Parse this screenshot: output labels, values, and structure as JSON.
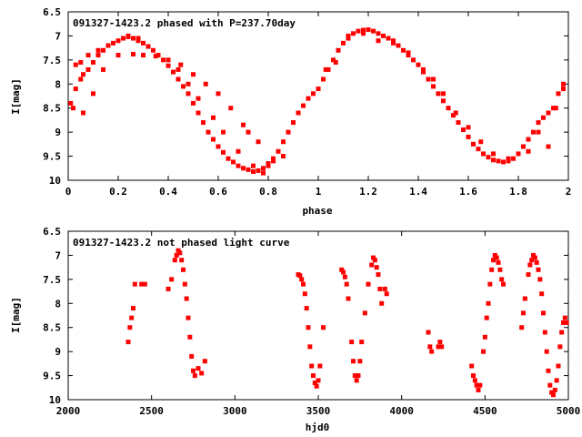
{
  "colors": {
    "series": "#ff0000",
    "axes": "#000000",
    "background": "#ffffff"
  },
  "chart_data": [
    {
      "type": "scatter",
      "title": "091327-1423.2 phased with P=237.70day",
      "xlabel": "phase",
      "ylabel": "I[mag]",
      "xlim": [
        0,
        2
      ],
      "ylim": [
        6.5,
        10
      ],
      "y_inverted": true,
      "grid": false,
      "xticks": [
        "0",
        "0.2",
        "0.4",
        "0.6",
        "0.8",
        "1",
        "1.2",
        "1.4",
        "1.6",
        "1.8",
        "2"
      ],
      "yticks": [
        "6.5",
        "7",
        "7.5",
        "8",
        "8.5",
        "9",
        "9.5",
        "10"
      ],
      "marker": "filled-square",
      "series": [
        {
          "name": "",
          "x": [
            0.01,
            0.02,
            0.03,
            0.05,
            0.06,
            0.08,
            0.1,
            0.12,
            0.14,
            0.16,
            0.18,
            0.2,
            0.22,
            0.24,
            0.26,
            0.28,
            0.3,
            0.32,
            0.34,
            0.36,
            0.38,
            0.4,
            0.42,
            0.44,
            0.46,
            0.48,
            0.5,
            0.52,
            0.54,
            0.56,
            0.58,
            0.6,
            0.62,
            0.64,
            0.66,
            0.68,
            0.7,
            0.72,
            0.74,
            0.76,
            0.78,
            0.8,
            0.82,
            0.84,
            0.86,
            0.88,
            0.9,
            0.92,
            0.94,
            0.96,
            0.98,
            1.0,
            1.02,
            1.04,
            1.06,
            1.08,
            1.1,
            1.12,
            1.14,
            1.16,
            1.18,
            1.2,
            1.22,
            1.24,
            1.26,
            1.28,
            1.3,
            1.32,
            1.34,
            1.36,
            1.38,
            1.4,
            1.42,
            1.44,
            1.46,
            1.48,
            1.5,
            1.52,
            1.54,
            1.56,
            1.58,
            1.6,
            1.62,
            1.64,
            1.66,
            1.68,
            1.7,
            1.72,
            1.74,
            1.76,
            1.78,
            1.8,
            1.82,
            1.84,
            1.86,
            1.88,
            1.9,
            1.92,
            1.94,
            1.96,
            1.98,
            0.06,
            0.1,
            0.14,
            0.2,
            0.26,
            0.3,
            0.35,
            0.4,
            0.45,
            0.5,
            0.55,
            0.6,
            0.65,
            0.7,
            0.72,
            0.76,
            0.8,
            0.03,
            0.05,
            0.08,
            0.12,
            0.16,
            0.24,
            0.28,
            0.44,
            0.48,
            0.52,
            0.58,
            0.62,
            0.68,
            0.74,
            0.78,
            0.82,
            0.86,
            1.03,
            1.07,
            1.12,
            1.18,
            1.24,
            1.3,
            1.36,
            1.42,
            1.46,
            1.5,
            1.55,
            1.6,
            1.65,
            1.7,
            1.76,
            1.84,
            1.88,
            1.92,
            1.95,
            1.98
          ],
          "y": [
            8.4,
            8.5,
            8.1,
            7.9,
            7.8,
            7.7,
            7.55,
            7.4,
            7.3,
            7.2,
            7.15,
            7.1,
            7.05,
            7.02,
            7.05,
            7.1,
            7.15,
            7.22,
            7.3,
            7.4,
            7.5,
            7.62,
            7.75,
            7.9,
            8.05,
            8.2,
            8.4,
            8.6,
            8.8,
            9.0,
            9.15,
            9.3,
            9.42,
            9.55,
            9.62,
            9.7,
            9.75,
            9.78,
            9.82,
            9.8,
            9.75,
            9.65,
            9.55,
            9.4,
            9.2,
            9.0,
            8.8,
            8.6,
            8.45,
            8.3,
            8.2,
            8.1,
            7.9,
            7.7,
            7.5,
            7.3,
            7.15,
            7.0,
            6.95,
            6.9,
            6.88,
            6.87,
            6.9,
            6.95,
            7.0,
            7.05,
            7.1,
            7.2,
            7.3,
            7.4,
            7.5,
            7.6,
            7.75,
            7.9,
            8.05,
            8.2,
            8.35,
            8.5,
            8.65,
            8.8,
            8.95,
            9.1,
            9.25,
            9.35,
            9.45,
            9.52,
            9.58,
            9.6,
            9.62,
            9.6,
            9.55,
            9.45,
            9.3,
            9.15,
            9.0,
            8.8,
            8.7,
            8.6,
            8.5,
            8.2,
            8.1,
            8.6,
            8.2,
            7.7,
            7.4,
            7.38,
            7.4,
            7.42,
            7.5,
            7.6,
            7.8,
            8.0,
            8.2,
            8.5,
            8.85,
            9.0,
            9.2,
            9.7,
            7.6,
            7.55,
            7.4,
            7.3,
            7.2,
            7.0,
            7.05,
            7.7,
            8.0,
            8.3,
            8.7,
            9.0,
            9.4,
            9.7,
            9.85,
            9.6,
            9.5,
            7.7,
            7.55,
            7.05,
            6.95,
            7.1,
            7.15,
            7.35,
            7.7,
            7.9,
            8.2,
            8.6,
            8.9,
            9.2,
            9.45,
            9.55,
            9.4,
            9.0,
            9.3,
            8.5,
            8.0
          ]
        }
      ]
    },
    {
      "type": "scatter",
      "title": "091327-1423.2 not phased light curve",
      "xlabel": "hjd0",
      "ylabel": "I[mag]",
      "xlim": [
        2000,
        5000
      ],
      "ylim": [
        6.5,
        10
      ],
      "y_inverted": true,
      "grid": false,
      "xticks": [
        "2000",
        "2500",
        "3000",
        "3500",
        "4000",
        "4500",
        "5000"
      ],
      "yticks": [
        "6.5",
        "7",
        "7.5",
        "8",
        "8.5",
        "9",
        "9.5",
        "10"
      ],
      "marker": "filled-square",
      "series": [
        {
          "name": "",
          "x": [
            2360,
            2370,
            2380,
            2390,
            2400,
            2440,
            2460,
            2600,
            2620,
            2640,
            2650,
            2660,
            2670,
            2680,
            2690,
            2700,
            2710,
            2720,
            2730,
            2740,
            2750,
            2760,
            2780,
            2800,
            2820,
            3380,
            3390,
            3400,
            3410,
            3420,
            3430,
            3440,
            3450,
            3460,
            3470,
            3480,
            3490,
            3500,
            3510,
            3530,
            3640,
            3650,
            3660,
            3670,
            3680,
            3700,
            3710,
            3720,
            3730,
            3740,
            3750,
            3760,
            3780,
            3800,
            3820,
            3830,
            3840,
            3850,
            3860,
            3870,
            3880,
            3900,
            3910,
            4160,
            4170,
            4180,
            4220,
            4230,
            4240,
            4420,
            4430,
            4440,
            4450,
            4460,
            4470,
            4490,
            4500,
            4510,
            4520,
            4530,
            4540,
            4550,
            4560,
            4570,
            4580,
            4590,
            4600,
            4610,
            4720,
            4730,
            4740,
            4760,
            4770,
            4780,
            4790,
            4800,
            4810,
            4820,
            4830,
            4840,
            4850,
            4860,
            4870,
            4880,
            4890,
            4900,
            4910,
            4920,
            4930,
            4940,
            4950,
            4960,
            4970,
            4980,
            4990
          ],
          "y": [
            8.8,
            8.5,
            8.3,
            8.1,
            7.6,
            7.6,
            7.6,
            7.7,
            7.5,
            7.1,
            7.0,
            6.9,
            6.95,
            7.1,
            7.3,
            7.6,
            7.9,
            8.3,
            8.7,
            9.1,
            9.4,
            9.5,
            9.35,
            9.45,
            9.2,
            7.4,
            7.42,
            7.5,
            7.6,
            7.8,
            8.1,
            8.5,
            8.9,
            9.3,
            9.5,
            9.65,
            9.72,
            9.6,
            9.3,
            8.5,
            7.3,
            7.35,
            7.45,
            7.6,
            7.9,
            8.8,
            9.2,
            9.5,
            9.6,
            9.5,
            9.2,
            8.8,
            8.2,
            7.6,
            7.2,
            7.05,
            7.1,
            7.25,
            7.4,
            7.7,
            8.0,
            7.7,
            7.8,
            8.6,
            8.9,
            9.0,
            8.9,
            8.8,
            8.9,
            9.3,
            9.5,
            9.6,
            9.7,
            9.8,
            9.7,
            9.0,
            8.7,
            8.3,
            8.0,
            7.6,
            7.3,
            7.1,
            7.0,
            7.05,
            7.15,
            7.3,
            7.5,
            7.6,
            8.5,
            8.2,
            7.9,
            7.4,
            7.2,
            7.1,
            7.0,
            7.05,
            7.15,
            7.3,
            7.5,
            7.8,
            8.2,
            8.6,
            9.0,
            9.4,
            9.7,
            9.85,
            9.9,
            9.8,
            9.6,
            9.3,
            8.9,
            8.6,
            8.4,
            8.3,
            8.4
          ]
        }
      ]
    }
  ]
}
